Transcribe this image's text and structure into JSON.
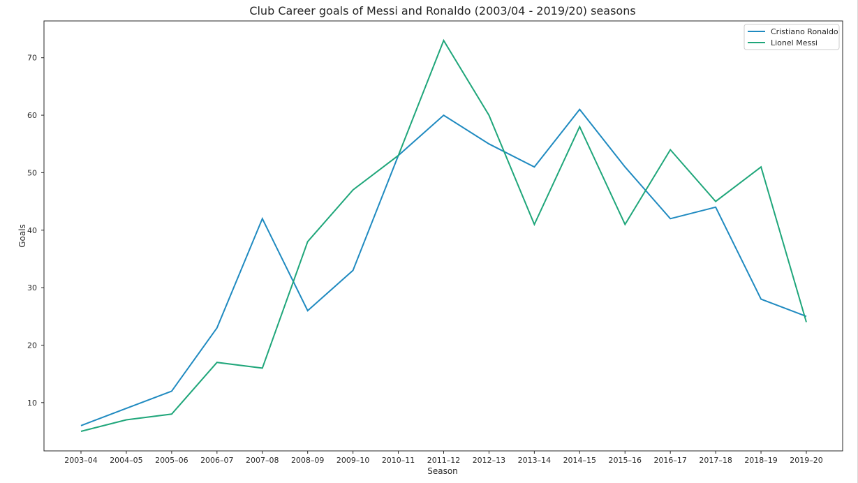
{
  "chart_data": {
    "type": "line",
    "title": "Club Career goals of Messi and Ronaldo (2003/04 - 2019/20) seasons",
    "xlabel": "Season",
    "ylabel": "Goals",
    "categories": [
      "2003–04",
      "2004–05",
      "2005–06",
      "2006–07",
      "2007–08",
      "2008–09",
      "2009–10",
      "2010–11",
      "2011–12",
      "2012–13",
      "2013–14",
      "2014–15",
      "2015–16",
      "2016–17",
      "2017–18",
      "2018–19",
      "2019–20"
    ],
    "ylim": [
      1.6,
      76.4
    ],
    "yticks": [
      10,
      20,
      30,
      40,
      50,
      60,
      70
    ],
    "grid": false,
    "legend_position": "top-right",
    "series": [
      {
        "name": "Cristiano Ronaldo",
        "color": "#1f8ac0",
        "values": [
          6,
          9,
          12,
          23,
          42,
          26,
          33,
          53,
          60,
          55,
          51,
          61,
          51,
          42,
          44,
          28,
          25
        ]
      },
      {
        "name": "Lionel Messi",
        "color": "#1fa67a",
        "values": [
          5,
          7,
          8,
          17,
          16,
          38,
          47,
          53,
          73,
          60,
          41,
          58,
          41,
          54,
          45,
          51,
          24
        ]
      }
    ]
  }
}
